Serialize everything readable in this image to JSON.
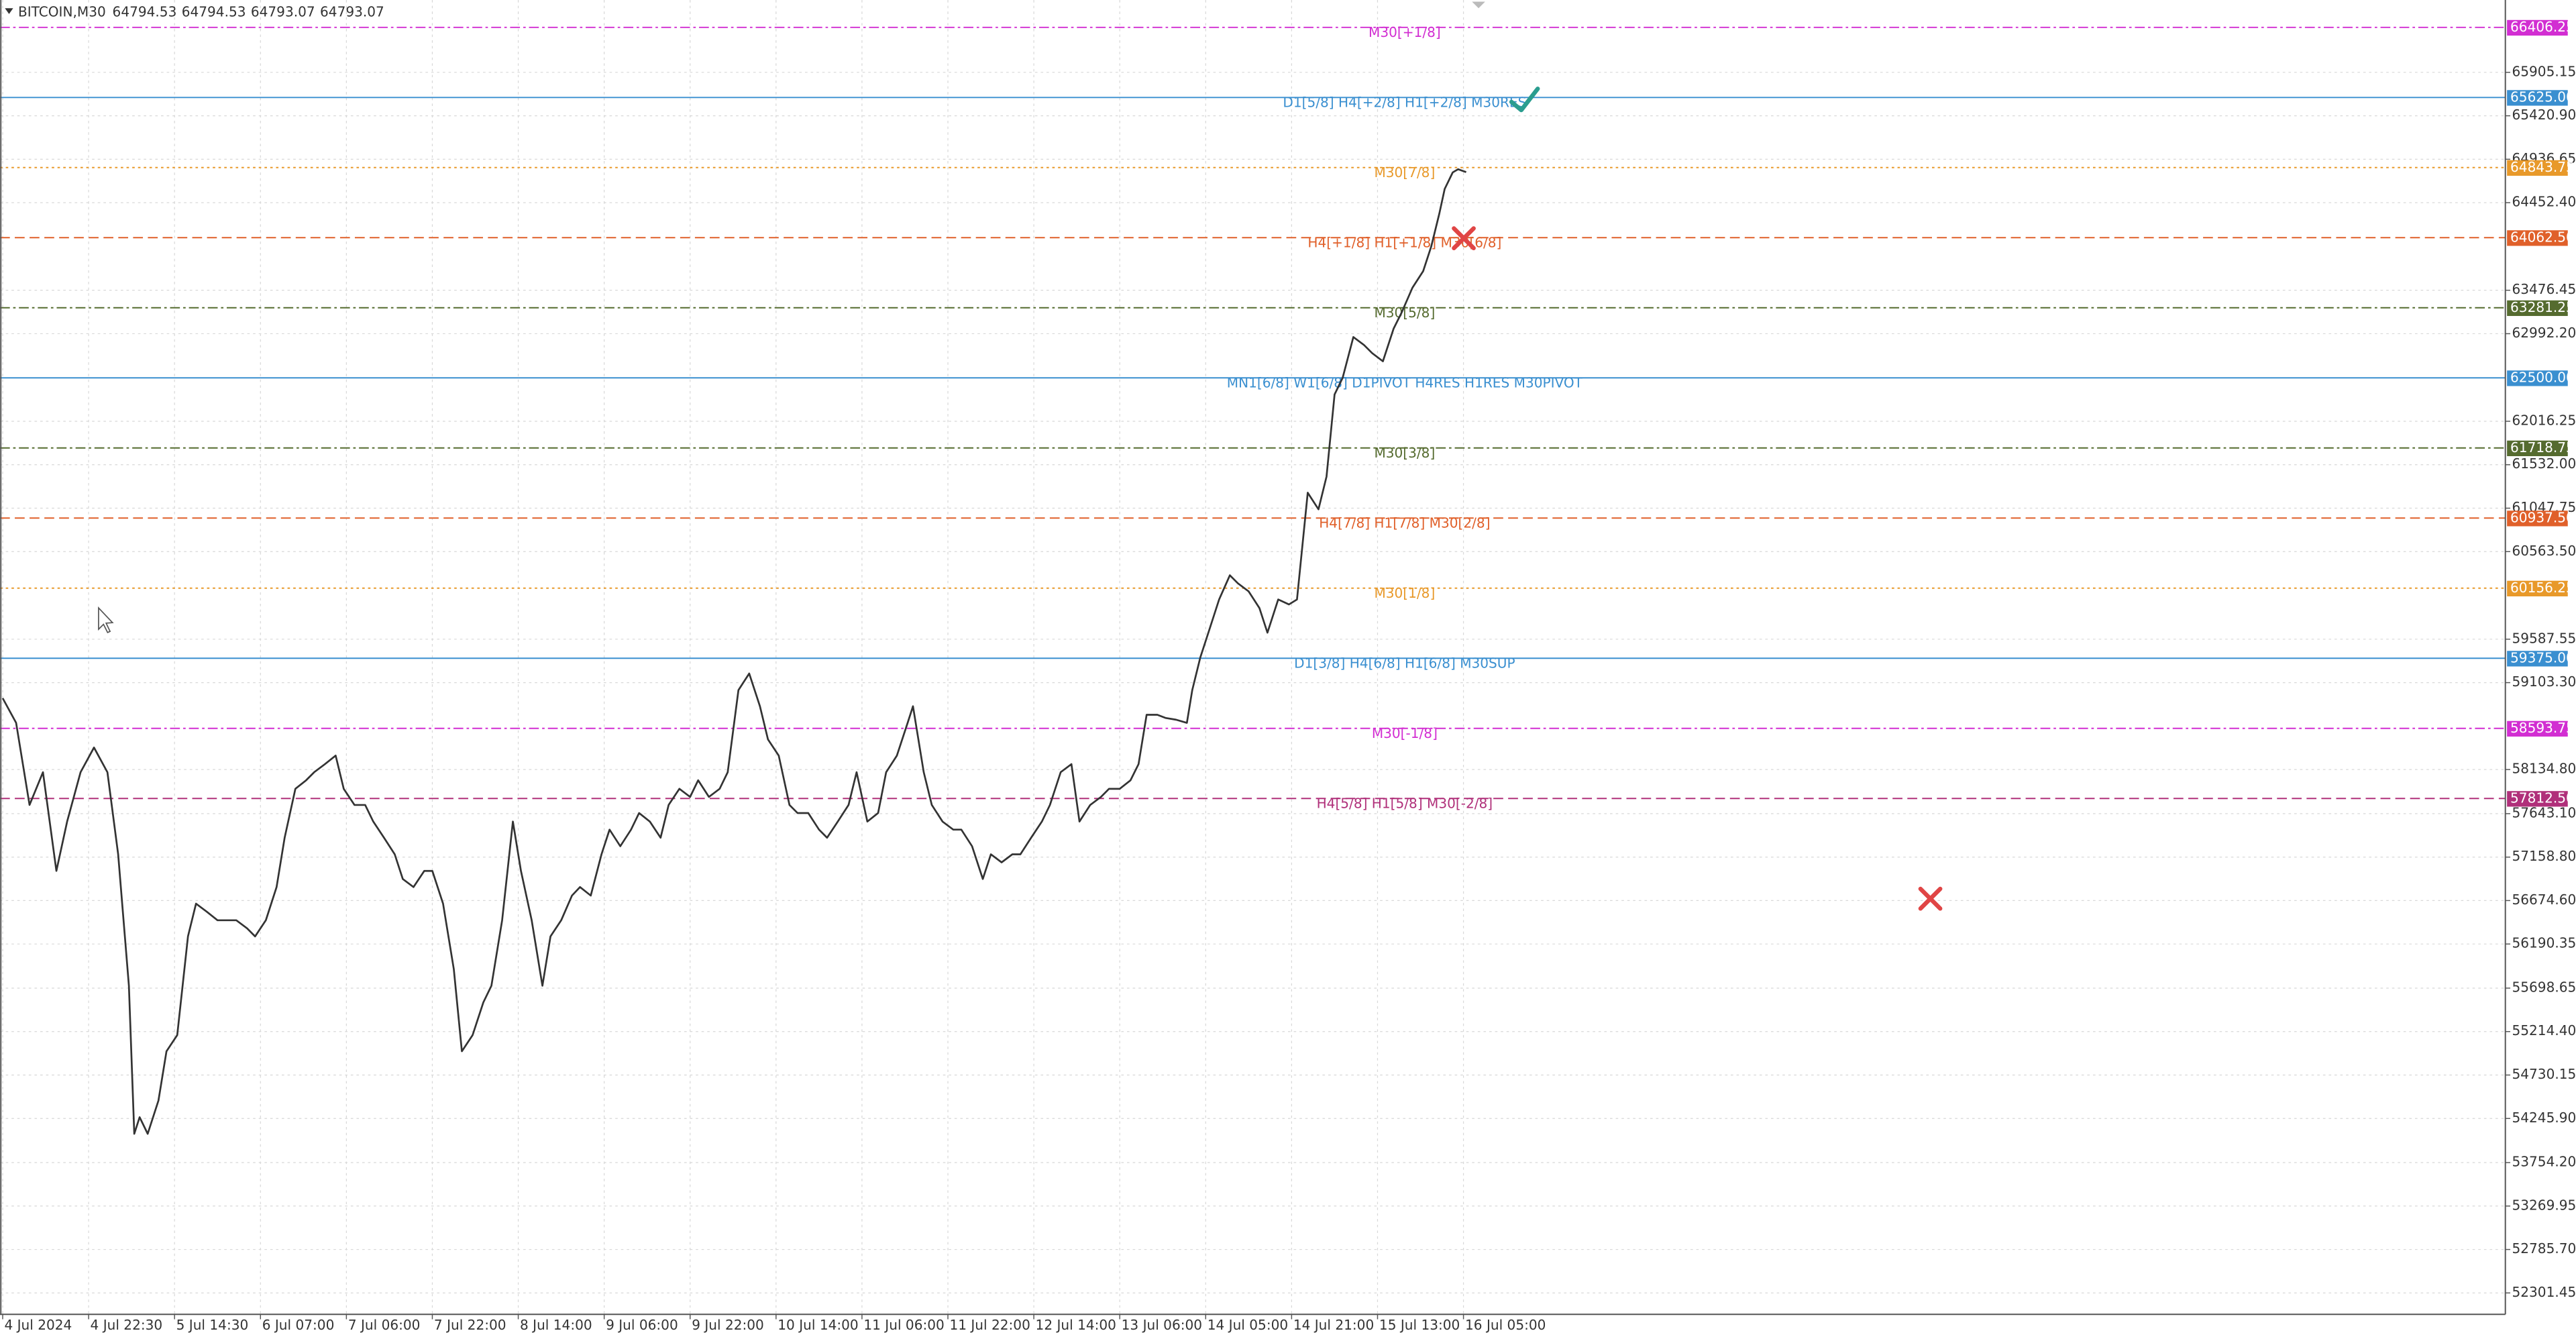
{
  "chart_data": {
    "type": "line",
    "symbol": "BITCOIN,M30",
    "ohlc": [
      64794.53,
      64794.53,
      64793.07,
      64793.07
    ],
    "color": "#333333",
    "grid": true,
    "xlim": [
      -1,
      932
    ],
    "ylim": [
      52063,
      66711
    ],
    "xticks": [
      {
        "value": 0,
        "label": "4 Jul 2024"
      },
      {
        "value": 32,
        "label": "4 Jul 22:30"
      },
      {
        "value": 64,
        "label": "5 Jul 14:30"
      },
      {
        "value": 96,
        "label": "6 Jul 07:00"
      },
      {
        "value": 128,
        "label": "7 Jul 06:00"
      },
      {
        "value": 160,
        "label": "7 Jul 22:00"
      },
      {
        "value": 192,
        "label": "8 Jul 14:00"
      },
      {
        "value": 224,
        "label": "9 Jul 06:00"
      },
      {
        "value": 256,
        "label": "9 Jul 22:00"
      },
      {
        "value": 288,
        "label": "10 Jul 14:00"
      },
      {
        "value": 320,
        "label": "11 Jul 06:00"
      },
      {
        "value": 352,
        "label": "11 Jul 22:00"
      },
      {
        "value": 384,
        "label": "12 Jul 14:00"
      },
      {
        "value": 416,
        "label": "13 Jul 06:00"
      },
      {
        "value": 448,
        "label": "14 Jul 05:00"
      },
      {
        "value": 480,
        "label": "14 Jul 21:00"
      },
      {
        "value": 512,
        "label": "15 Jul 13:00"
      },
      {
        "value": 544,
        "label": "16 Jul 05:00"
      }
    ],
    "yticks": [
      65905.15,
      {
        "value": 65420.9,
        "label": "65420.90"
      },
      64936.65,
      {
        "value": 64452.4,
        "label": "64452.40"
      },
      63476.45,
      {
        "value": 62992.2,
        "label": "62992.20"
      },
      62016.25,
      {
        "value": 61532,
        "label": "61532.00"
      },
      61047.75,
      {
        "value": 60563.5,
        "label": "60563.50"
      },
      59587.55,
      {
        "value": 59103.3,
        "label": "59103.30"
      },
      {
        "value": 58134.8,
        "label": "58134.80"
      },
      {
        "value": 57643.1,
        "label": "57643.10"
      },
      {
        "value": 57158.8,
        "label": "57158.80"
      },
      {
        "value": 56674.6,
        "label": "56674.60"
      },
      56190.35,
      55698.65,
      {
        "value": 55214.4,
        "label": "55214.40"
      },
      54730.15,
      {
        "value": 54245.9,
        "label": "54245.90"
      },
      {
        "value": 53754.2,
        "label": "53754.20"
      },
      53269.95,
      {
        "value": 52785.7,
        "label": "52785.70"
      },
      52301.45
    ],
    "levels": [
      {
        "value": 66406.25,
        "label": "66406.25",
        "text": "M30[+1/8]",
        "color": "#d22ed2",
        "style": "dashdot"
      },
      {
        "value": 65625,
        "label": "65625.00",
        "text": "D1[5/8] H4[+2/8] H1[+2/8] M30RES",
        "color": "#3a8fd0",
        "style": "solid"
      },
      {
        "value": 64843.75,
        "label": "64843.75",
        "text": "M30[7/8]",
        "color": "#e8992a",
        "style": "dotted"
      },
      {
        "value": 64062.5,
        "label": "64062.50",
        "text": "H4[+1/8] H1[+1/8] M30[6/8]",
        "color": "#e0602a",
        "style": "dashed"
      },
      {
        "value": 63281.25,
        "label": "63281.25",
        "text": "M30[5/8]",
        "color": "#556b2f",
        "style": "dashdot"
      },
      {
        "value": 62500,
        "label": "62500.00",
        "text": "MN1[6/8] W1[6/8] D1PIVOT H4RES H1RES M30PIVOT",
        "color": "#3a8fd0",
        "style": "solid"
      },
      {
        "value": 61718.75,
        "label": "61718.75",
        "text": "M30[3/8]",
        "color": "#556b2f",
        "style": "dashdot"
      },
      {
        "value": 60937.5,
        "label": "60937.50",
        "text": "H4[7/8] H1[7/8] M30[2/8]",
        "color": "#e0602a",
        "style": "dashed"
      },
      {
        "value": 60156.25,
        "label": "60156.25",
        "text": "M30[1/8]",
        "color": "#e8992a",
        "style": "dotted"
      },
      {
        "value": 59375,
        "label": "59375.00",
        "text": "D1[3/8] H4[6/8] H1[6/8] M30SUP",
        "color": "#3a8fd0",
        "style": "solid"
      },
      {
        "value": 58593.75,
        "label": "58593.75",
        "text": "M30[-1/8]",
        "color": "#d22ed2",
        "style": "dashdot"
      },
      {
        "value": 57812.5,
        "label": "57812.50",
        "text": "H4[5/8] H1[5/8] M30[-2/8]",
        "color": "#b0307a",
        "style": "dashed"
      }
    ],
    "x": [
      0,
      5,
      10,
      15,
      20,
      24,
      29,
      34,
      39,
      43,
      47,
      49,
      51,
      54,
      58,
      61,
      65,
      69,
      72,
      76,
      80,
      83,
      87,
      91,
      94,
      98,
      102,
      105,
      109,
      113,
      116,
      120,
      124,
      127,
      131,
      135,
      138,
      142,
      146,
      149,
      153,
      157,
      160,
      164,
      168,
      171,
      175,
      179,
      182,
      186,
      190,
      193,
      197,
      201,
      204,
      208,
      212,
      215,
      219,
      223,
      226,
      230,
      234,
      237,
      241,
      245,
      248,
      252,
      256,
      259,
      263,
      267,
      270,
      274,
      278,
      282,
      285,
      289,
      293,
      296,
      300,
      304,
      307,
      311,
      315,
      318,
      322,
      326,
      329,
      333,
      337,
      339,
      343,
      346,
      350,
      354,
      357,
      361,
      365,
      368,
      372,
      376,
      379,
      383,
      387,
      390,
      394,
      398,
      401,
      405,
      409,
      412,
      416,
      420,
      423,
      426,
      430,
      433,
      437,
      441,
      443,
      446,
      449,
      453,
      457,
      460,
      464,
      468,
      471,
      475,
      479,
      482,
      486,
      490,
      493,
      496,
      499,
      503,
      507,
      510,
      514,
      518,
      521,
      525,
      529,
      532,
      535,
      537,
      540,
      542,
      545
    ],
    "values": [
      58930,
      58655,
      57740,
      58105,
      57005,
      57555,
      58105,
      58380,
      58105,
      57190,
      55725,
      54075,
      54260,
      54075,
      54445,
      54995,
      55175,
      56275,
      56640,
      56550,
      56455,
      56455,
      56455,
      56365,
      56275,
      56455,
      56825,
      57375,
      57920,
      58015,
      58105,
      58195,
      58290,
      57920,
      57740,
      57740,
      57555,
      57375,
      57190,
      56915,
      56825,
      57005,
      57005,
      56640,
      55910,
      54995,
      55175,
      55540,
      55725,
      56455,
      57555,
      57005,
      56455,
      55725,
      56275,
      56455,
      56730,
      56825,
      56730,
      57190,
      57465,
      57280,
      57465,
      57650,
      57555,
      57375,
      57740,
      57920,
      57830,
      58015,
      57830,
      57920,
      58105,
      59020,
      59205,
      58840,
      58470,
      58290,
      57740,
      57650,
      57650,
      57465,
      57375,
      57555,
      57740,
      58105,
      57555,
      57650,
      58105,
      58290,
      58655,
      58840,
      58105,
      57740,
      57555,
      57465,
      57465,
      57280,
      56915,
      57190,
      57100,
      57190,
      57190,
      57375,
      57555,
      57740,
      58105,
      58195,
      57555,
      57740,
      57830,
      57920,
      57920,
      58015,
      58195,
      58745,
      58745,
      58710,
      58690,
      58655,
      59020,
      59385,
      59660,
      60030,
      60300,
      60210,
      60120,
      59935,
      59660,
      60030,
      59975,
      60030,
      61220,
      61035,
      61400,
      62315,
      62500,
      62955,
      62865,
      62775,
      62685,
      63050,
      63230,
      63505,
      63690,
      63965,
      64330,
      64605,
      64790,
      64825,
      64793
    ]
  }
}
